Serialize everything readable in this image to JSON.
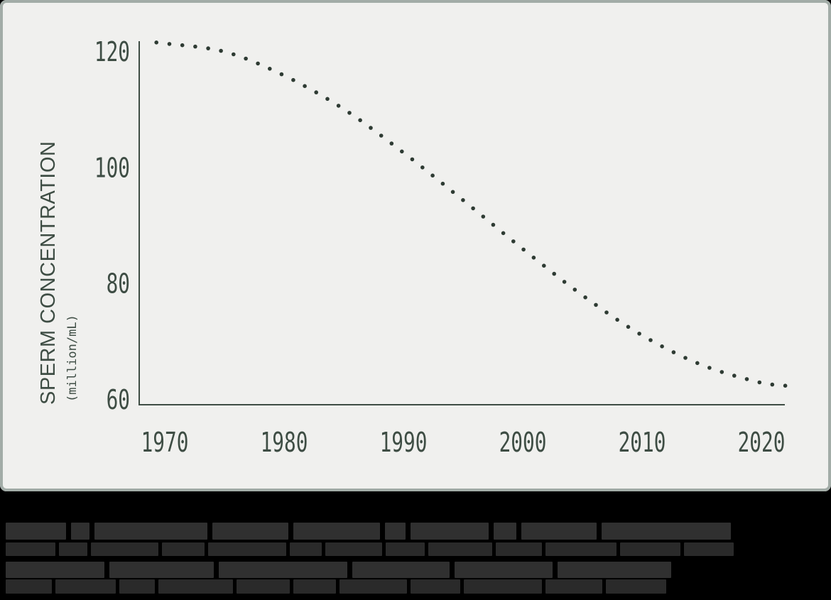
{
  "panel": {
    "background": "#f0f0ee",
    "border_color": "#a2aca7"
  },
  "colors": {
    "axis": "#3e4d44",
    "tick_text": "#3e4d44",
    "label_text": "#3e4d44",
    "dots": "#2e3b33",
    "caption_background": "#000000",
    "caption_block_bold": "#303030",
    "caption_block_light": "#2a2a2a"
  },
  "chart_data": {
    "type": "line",
    "style": "dotted",
    "title": "",
    "ylabel": "SPERM CONCENTRATION",
    "ylabel_units": "(million/mL)",
    "xlabel": "",
    "xticks": [
      1970,
      1980,
      1990,
      2000,
      2010,
      2020
    ],
    "yticks": [
      60,
      80,
      100,
      120
    ],
    "xlim": [
      1967.9,
      2022
    ],
    "ylim": [
      59,
      121.7
    ],
    "grid": false,
    "legend": false,
    "x": [
      1969.3,
      1975,
      1980,
      1985,
      1990,
      1995,
      2000,
      2005,
      2010,
      2015,
      2020,
      2022
    ],
    "values": [
      121.5,
      119.9,
      115.8,
      110.0,
      102.5,
      94.3,
      85.9,
      77.9,
      71.0,
      65.9,
      62.8,
      62.3
    ]
  },
  "caption": {
    "legible": false,
    "rows": [
      {
        "height": 24,
        "gap": 7,
        "top_margin": 44,
        "tone": "bold",
        "blocks": [
          85,
          26,
          159,
          107,
          122,
          29,
          110,
          32,
          106,
          182
        ]
      },
      {
        "height": 19,
        "gap": 5,
        "top_margin": 4,
        "tone": "light",
        "blocks": [
          70,
          40,
          95,
          60,
          110,
          45,
          80,
          55,
          90,
          65,
          100,
          85,
          70
        ]
      },
      {
        "height": 23,
        "gap": 7,
        "top_margin": 8,
        "tone": "bold",
        "blocks": [
          139,
          147,
          181,
          137,
          138,
          160
        ]
      },
      {
        "height": 20,
        "gap": 5,
        "top_margin": 2,
        "tone": "light",
        "blocks": [
          65,
          85,
          50,
          105,
          75,
          60,
          95,
          70,
          110,
          80,
          85
        ]
      }
    ]
  }
}
